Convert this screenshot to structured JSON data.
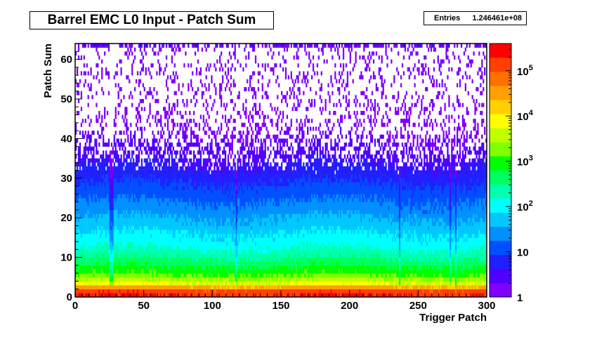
{
  "chart_data": {
    "type": "heatmap",
    "title": "Barrel EMC L0 Input - Patch Sum",
    "xlabel": "Trigger Patch",
    "ylabel": "Patch Sum",
    "xlim": [
      0,
      300
    ],
    "ylim": [
      0,
      64
    ],
    "x_ticks": [
      "0",
      "50",
      "100",
      "150",
      "200",
      "250",
      "300"
    ],
    "y_ticks": [
      "0",
      "10",
      "20",
      "30",
      "40",
      "50",
      "60"
    ],
    "z_scale": "log",
    "zlim": [
      1,
      400000
    ],
    "z_tick_labels": [
      "1",
      "10",
      "10^2",
      "10^3",
      "10^4",
      "10^5"
    ],
    "palette": [
      "#7f00ff",
      "#5000ff",
      "#2020ff",
      "#0050ff",
      "#0090ff",
      "#00c8ff",
      "#00ffff",
      "#00ffb0",
      "#00ff60",
      "#00ff00",
      "#80ff00",
      "#c0ff00",
      "#ffff00",
      "#ffd000",
      "#ffa000",
      "#ff7000",
      "#ff4000",
      "#ff0000"
    ],
    "stats": {
      "label": "Entries",
      "value": "1.246461e+08"
    },
    "profile_by_y": [
      {
        "y": 0,
        "counts": 200000
      },
      {
        "y": 1,
        "counts": 150000
      },
      {
        "y": 2,
        "counts": 30000
      },
      {
        "y": 3,
        "counts": 6000
      },
      {
        "y": 5,
        "counts": 1500
      },
      {
        "y": 8,
        "counts": 500
      },
      {
        "y": 12,
        "counts": 150
      },
      {
        "y": 18,
        "counts": 50
      },
      {
        "y": 25,
        "counts": 15
      },
      {
        "y": 32,
        "counts": 5
      },
      {
        "y": 40,
        "counts": 2
      },
      {
        "y": 50,
        "counts": 1
      },
      {
        "y": 63,
        "counts": 1
      }
    ]
  }
}
